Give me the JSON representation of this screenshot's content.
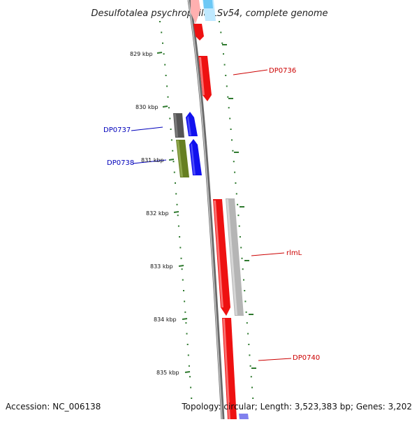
{
  "title": "Desulfotalea psychrophila LSv54, complete genome",
  "footer": {
    "accession": "Accession: NC_006138",
    "topology": "Topology: circular; Length: 3,523,383 bp; Genes: 3,202"
  },
  "ticks": [
    "829 kbp",
    "830 kbp",
    "831 kbp",
    "832 kbp",
    "833 kbp",
    "834 kbp",
    "835 kbp"
  ],
  "gene_labels": {
    "dp0736": "DP0736",
    "dp0737": "DP0737",
    "dp0738": "DP0738",
    "rlml": "rlmL",
    "dp0740": "DP0740"
  },
  "colors": {
    "backbone": "#7a7a7a",
    "tick": "#2f7a2f",
    "red_gene": "#ee1111",
    "blue_gene": "#1111ee",
    "grey_gene": "#555555",
    "olive_gene": "#667f22",
    "light_grey_gene": "#b5b5b5",
    "cyan_gene": "#7fd0ff",
    "pink_gene": "#ffb0b0",
    "red_label": "#cc0000",
    "blue_label": "#0000bb"
  }
}
